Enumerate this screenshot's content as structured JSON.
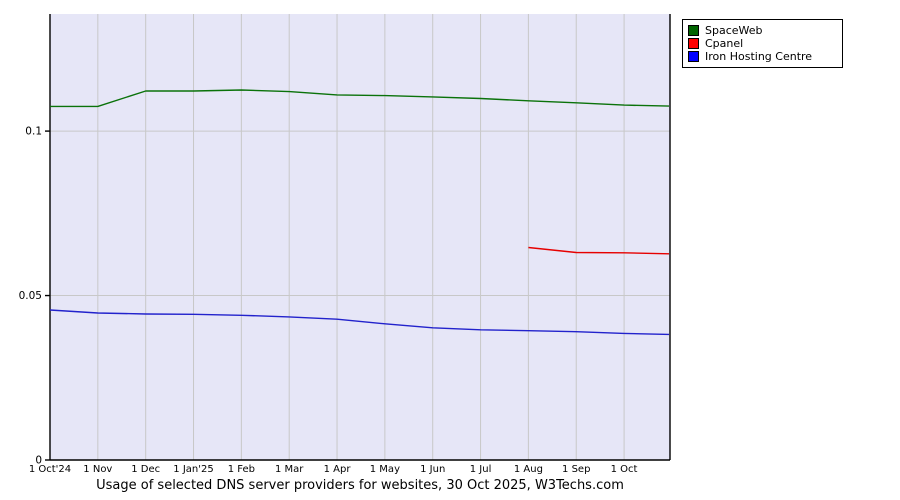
{
  "caption": "Usage of selected DNS server providers for websites, 30 Oct 2025, W3Techs.com",
  "legend": {
    "items": [
      {
        "label": "SpaceWeb",
        "color": "#006400"
      },
      {
        "label": "Cpanel",
        "color": "#ff0000"
      },
      {
        "label": "Iron Hosting Centre",
        "color": "#0000ff"
      }
    ]
  },
  "chart_data": {
    "type": "line",
    "title": "Usage of selected DNS server providers for websites, 30 Oct 2025, W3Techs.com",
    "x_labels": [
      "1 Oct'24",
      "1 Nov",
      "1 Dec",
      "1 Jan'25",
      "1 Feb",
      "1 Mar",
      "1 Apr",
      "1 May",
      "1 Jun",
      "1 Jul",
      "1 Aug",
      "1 Sep",
      "1 Oct"
    ],
    "x_range_months": [
      0,
      12.96
    ],
    "ylim": [
      0,
      0.1356
    ],
    "y_ticks": [
      {
        "value": 0,
        "label": "0"
      },
      {
        "value": 0.05,
        "label": "0.05"
      },
      {
        "value": 0.1,
        "label": "0.1"
      }
    ],
    "grid": true,
    "legend_position": "top-right",
    "plot_bg": "#e6e6f7",
    "grid_color": "#c8c8c8",
    "axis_color": "#000000",
    "series": [
      {
        "name": "SpaceWeb",
        "color": "#0a720a",
        "x": [
          0,
          1,
          2,
          3,
          4,
          5,
          6,
          7,
          8,
          9,
          10,
          11,
          12,
          12.94
        ],
        "values": [
          0.1075,
          0.1075,
          0.1122,
          0.1122,
          0.1125,
          0.112,
          0.111,
          0.1108,
          0.1104,
          0.1099,
          0.1092,
          0.1086,
          0.1079,
          0.1076
        ]
      },
      {
        "name": "Cpanel",
        "color": "#e60000",
        "x": [
          10,
          11,
          12,
          12.94
        ],
        "values": [
          0.0646,
          0.0631,
          0.063,
          0.0627
        ]
      },
      {
        "name": "Iron Hosting Centre",
        "color": "#2222cc",
        "x": [
          0,
          1,
          2,
          3,
          4,
          5,
          6,
          7,
          8,
          9,
          10,
          11,
          12,
          12.94
        ],
        "values": [
          0.0456,
          0.0447,
          0.0444,
          0.0443,
          0.044,
          0.0435,
          0.0428,
          0.0414,
          0.0402,
          0.0396,
          0.0393,
          0.039,
          0.0385,
          0.0382
        ]
      }
    ]
  }
}
